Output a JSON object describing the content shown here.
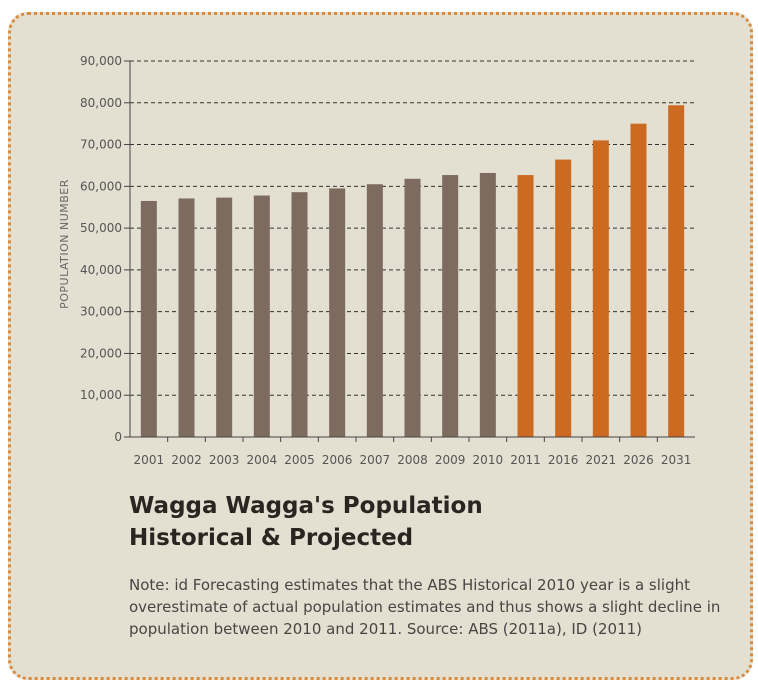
{
  "chart_data": {
    "type": "bar",
    "ylabel": "POPULATION NUMBER",
    "xlabel": "",
    "ylim": [
      0,
      90000
    ],
    "yticks": [
      {
        "value": 0,
        "label": "0"
      },
      {
        "value": 10000,
        "label": "10,000"
      },
      {
        "value": 20000,
        "label": "20,000"
      },
      {
        "value": 30000,
        "label": "30,000"
      },
      {
        "value": 40000,
        "label": "40,000"
      },
      {
        "value": 50000,
        "label": "50,000"
      },
      {
        "value": 60000,
        "label": "60,000"
      },
      {
        "value": 70000,
        "label": "70,000"
      },
      {
        "value": 80000,
        "label": "80,000"
      },
      {
        "value": 90000,
        "label": "90,000"
      }
    ],
    "grid": true,
    "categories": [
      "2001",
      "2002",
      "2003",
      "2004",
      "2005",
      "2006",
      "2007",
      "2008",
      "2009",
      "2010",
      "2011",
      "2016",
      "2021",
      "2026",
      "2031"
    ],
    "values": [
      56500,
      57100,
      57300,
      57800,
      58600,
      59500,
      60500,
      61800,
      62700,
      63200,
      62700,
      66400,
      71000,
      75000,
      79400
    ],
    "series_type": [
      "historical",
      "historical",
      "historical",
      "historical",
      "historical",
      "historical",
      "historical",
      "historical",
      "historical",
      "historical",
      "projected",
      "projected",
      "projected",
      "projected",
      "projected"
    ],
    "colors": {
      "historical": "#7c6b5e",
      "projected": "#cd6a21",
      "grid": "#333333",
      "axis": "#444444"
    }
  },
  "title_line1": "Wagga Wagga's Population",
  "title_line2": "Historical & Projected",
  "note": "Note: id Forecasting estimates that the ABS Historical 2010 year is a slight overestimate of actual population estimates and thus shows a slight decline in population between 2010 and 2011. Source: ABS (2011a), ID (2011)"
}
